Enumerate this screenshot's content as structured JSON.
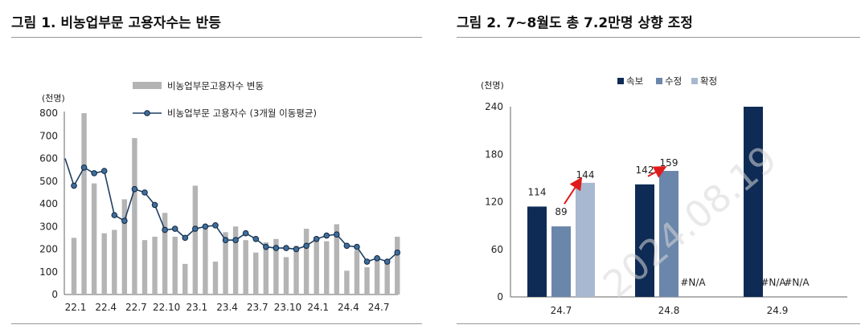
{
  "fig1": {
    "title": "그림 1. 비농업부문 고용자수는 반등",
    "chart_data": {
      "type": "bar",
      "ylabel": "(천명)",
      "ylim": [
        0,
        800
      ],
      "yticks": [
        0,
        100,
        200,
        300,
        400,
        500,
        600,
        700,
        800
      ],
      "xtick_labels": [
        "22.1",
        "22.4",
        "22.7",
        "22.10",
        "23.1",
        "23.4",
        "23.7",
        "23.10",
        "24.1",
        "24.4",
        "24.7"
      ],
      "legend_position": "top",
      "series": [
        {
          "name": "비농업부문고용자수 변동",
          "kind": "bar",
          "color": "#b4b4b4",
          "values": [
            250,
            800,
            490,
            270,
            285,
            420,
            690,
            240,
            255,
            360,
            255,
            135,
            480,
            290,
            145,
            275,
            300,
            240,
            185,
            230,
            245,
            165,
            215,
            290,
            255,
            235,
            310,
            105,
            195,
            120,
            155,
            140,
            255
          ]
        },
        {
          "name": "비농업부문 고용자수 (3개월 이동평균)",
          "kind": "line",
          "color": "#1f3f63",
          "marker_color": "#3f6e9a",
          "start_value": 600,
          "values": [
            480,
            560,
            535,
            545,
            350,
            325,
            465,
            450,
            395,
            285,
            290,
            250,
            290,
            300,
            305,
            240,
            240,
            270,
            245,
            210,
            205,
            205,
            200,
            215,
            245,
            260,
            265,
            215,
            210,
            145,
            160,
            145,
            185
          ]
        }
      ]
    }
  },
  "fig2": {
    "title": "그림 2. 7~8월도 총 7.2만명 상향 조정",
    "chart_data": {
      "type": "bar",
      "ylabel": "(천명)",
      "ylim": [
        0,
        240
      ],
      "yticks": [
        0,
        60,
        120,
        180,
        240
      ],
      "categories": [
        "24.7",
        "24.8",
        "24.9"
      ],
      "legend_position": "top",
      "series": [
        {
          "name": "속보",
          "color": "#0e2b55",
          "values": [
            114,
            142,
            240
          ],
          "labels": [
            "114",
            "142",
            ""
          ]
        },
        {
          "name": "수정",
          "color": "#6b86ab",
          "values": [
            89,
            159,
            null
          ],
          "labels": [
            "89",
            "159",
            "#N/A"
          ]
        },
        {
          "name": "확정",
          "color": "#a7b8d0",
          "values": [
            144,
            null,
            null
          ],
          "labels": [
            "144",
            "#N/A",
            "#N/A"
          ]
        }
      ],
      "arrows": [
        {
          "category": "24.7",
          "from_series": 1,
          "to_series": 2,
          "color": "#e01b1b"
        },
        {
          "category": "24.8",
          "from_series": 0,
          "to_series": 1,
          "color": "#e01b1b"
        }
      ]
    }
  },
  "watermark": "2024.08.19"
}
